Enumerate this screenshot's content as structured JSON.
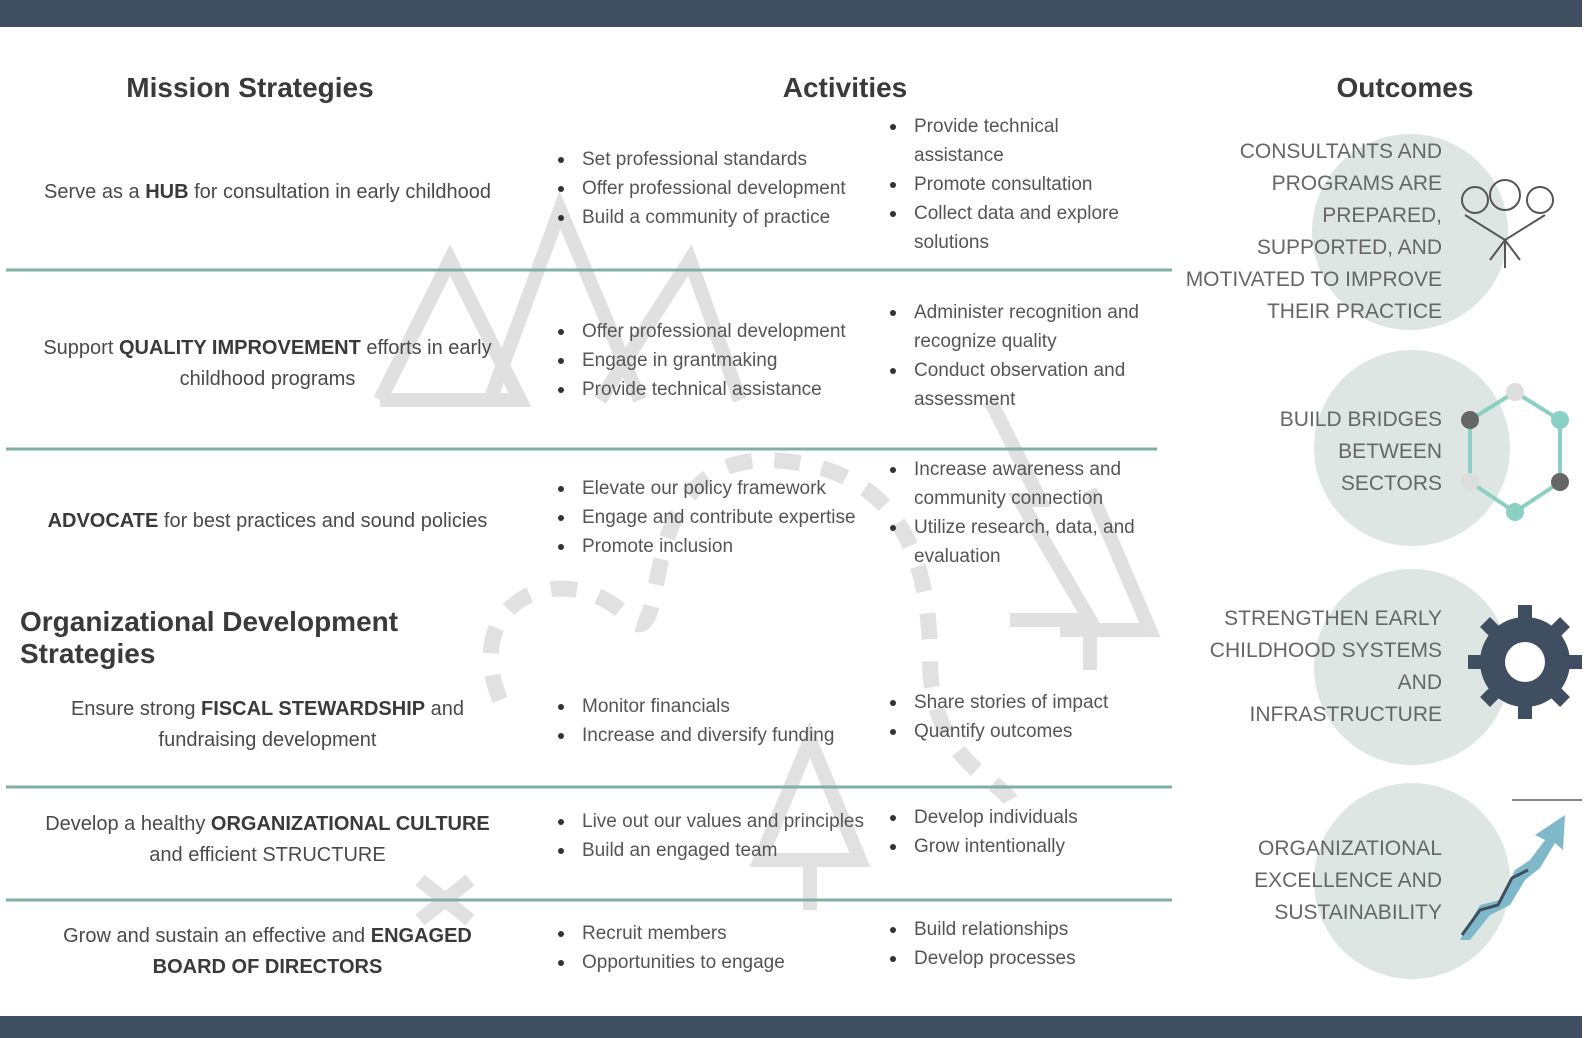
{
  "headers": {
    "mission": "Mission Strategies",
    "activities": "Activities",
    "outcomes": "Outcomes"
  },
  "od_header": "Organizational Development Strategies",
  "rows": [
    {
      "strategy": [
        {
          "text": "Serve as a ",
          "bold": false
        },
        {
          "text": "HUB",
          "bold": true
        },
        {
          "text": " for consultation in early childhood",
          "bold": false
        }
      ],
      "activities_a": [
        "Set professional standards",
        "Offer professional development",
        "Build a community of practice"
      ],
      "activities_b": [
        "Provide technical assistance",
        "Promote consultation",
        "Collect data and explore solutions"
      ]
    },
    {
      "strategy": [
        {
          "text": "Support ",
          "bold": false
        },
        {
          "text": "QUALITY IMPROVEMENT",
          "bold": true
        },
        {
          "text": " efforts in early childhood programs",
          "bold": false
        }
      ],
      "activities_a": [
        "Offer professional development",
        "Engage in grantmaking",
        "Provide technical assistance"
      ],
      "activities_b": [
        "Administer recognition and recognize quality",
        "Conduct observation and assessment"
      ]
    },
    {
      "strategy": [
        {
          "text": "ADVOCATE",
          "bold": true
        },
        {
          "text": " for best practices and sound policies",
          "bold": false
        }
      ],
      "activities_a": [
        "Elevate our policy framework",
        "Engage and contribute expertise",
        "Promote inclusion"
      ],
      "activities_b": [
        "Increase awareness and community connection",
        "Utilize research, data, and evaluation"
      ]
    },
    {
      "strategy": [
        {
          "text": "Ensure strong ",
          "bold": false
        },
        {
          "text": "FISCAL STEWARDSHIP",
          "bold": true
        },
        {
          "text": " and fundraising development",
          "bold": false
        }
      ],
      "activities_a": [
        "Monitor financials",
        "Increase and diversify funding"
      ],
      "activities_b": [
        "Share stories of impact",
        "Quantify outcomes"
      ]
    },
    {
      "strategy": [
        {
          "text": "Develop a healthy ",
          "bold": false
        },
        {
          "text": "ORGANIZATIONAL CULTURE",
          "bold": true
        },
        {
          "text": " and efficient STRUCTURE",
          "bold": false
        }
      ],
      "activities_a": [
        "Live out our values and principles",
        "Build an engaged team"
      ],
      "activities_b": [
        "Develop individuals",
        "Grow intentionally"
      ]
    },
    {
      "strategy": [
        {
          "text": "Grow and sustain an effective and ",
          "bold": false
        },
        {
          "text": "ENGAGED BOARD OF DIRECTORS",
          "bold": true
        }
      ],
      "activities_a": [
        "Recruit members",
        "Opportunities to engage"
      ],
      "activities_b": [
        "Build relationships",
        "Develop processes"
      ]
    }
  ],
  "outcomes": [
    "CONSULTANTS AND PROGRAMS ARE PREPARED, SUPPORTED, AND MOTIVATED TO IMPROVE THEIR PRACTICE",
    "BUILD BRIDGES BETWEEN SECTORS",
    "STRENGTHEN EARLY CHILDHOOD SYSTEMS AND INFRASTRUCTURE",
    "ORGANIZATIONAL EXCELLENCE AND SUSTAINABILITY"
  ]
}
